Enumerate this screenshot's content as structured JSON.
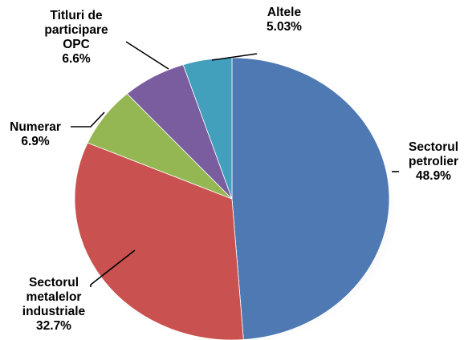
{
  "chart_data": {
    "type": "pie",
    "title": "",
    "slices": [
      {
        "name": "Sectorul petrolier",
        "label_lines": [
          "Sectorul",
          "petrolier"
        ],
        "value": 48.9,
        "value_label": "48.9%",
        "color": "#4e79b2"
      },
      {
        "name": "Sectorul metalelor industriale",
        "label_lines": [
          "Sectorul",
          "metalelor",
          "industriale"
        ],
        "value": 32.7,
        "value_label": "32.7%",
        "color": "#c9514f"
      },
      {
        "name": "Numerar",
        "label_lines": [
          "Numerar"
        ],
        "value": 6.9,
        "value_label": "6.9%",
        "color": "#95b753"
      },
      {
        "name": "Titluri de participare OPC",
        "label_lines": [
          "Titluri de",
          "participare",
          "OPC"
        ],
        "value": 6.6,
        "value_label": "6.6%",
        "color": "#7a5d9e"
      },
      {
        "name": "Altele",
        "label_lines": [
          "Altele"
        ],
        "value": 5.03,
        "value_label": "5.03%",
        "color": "#43a0bd"
      }
    ],
    "legend": "none",
    "data_labels": "outside-with-leader-lines"
  }
}
